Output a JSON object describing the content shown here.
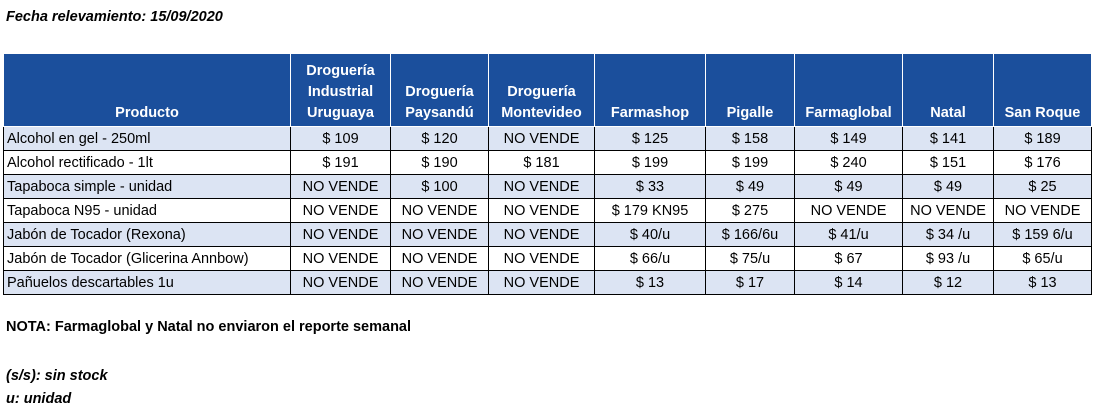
{
  "date_line": "Fecha relevamiento: 15/09/2020",
  "table": {
    "headers": [
      "Producto",
      "Droguería Industrial Uruguaya",
      "Droguería Paysandú",
      "Droguería Montevideo",
      "Farmashop",
      "Pigalle",
      "Farmaglobal",
      "Natal",
      "San Roque"
    ],
    "rows": [
      [
        "Alcohol en gel  - 250ml",
        "$ 109",
        "$ 120",
        "NO VENDE",
        "$ 125",
        "$ 158",
        "$ 149",
        "$ 141",
        "$ 189"
      ],
      [
        "Alcohol rectificado - 1lt",
        "$ 191",
        "$ 190",
        "$ 181",
        "$ 199",
        "$ 199",
        "$ 240",
        "$ 151",
        "$ 176"
      ],
      [
        "Tapaboca simple - unidad",
        "NO VENDE",
        "$ 100",
        "NO VENDE",
        "$ 33",
        "$ 49",
        "$ 49",
        "$ 49",
        "$ 25"
      ],
      [
        "Tapaboca N95 - unidad",
        "NO VENDE",
        "NO VENDE",
        "NO VENDE",
        "$ 179  KN95",
        "$ 275",
        "NO VENDE",
        "NO VENDE",
        "NO VENDE"
      ],
      [
        "Jabón de Tocador (Rexona)",
        "NO VENDE",
        "NO VENDE",
        "NO VENDE",
        "$ 40/u",
        "$ 166/6u",
        "$ 41/u",
        "$ 34 /u",
        "$ 159 6/u"
      ],
      [
        "Jabón de Tocador (Glicerina Annbow)",
        "NO VENDE",
        "NO VENDE",
        "NO VENDE",
        "$ 66/u",
        "$ 75/u",
        "$ 67",
        "$ 93 /u",
        "$ 65/u"
      ],
      [
        "Pañuelos descartables 1u",
        "NO VENDE",
        "NO VENDE",
        "NO VENDE",
        "$ 13",
        "$ 17",
        "$ 14",
        "$ 12",
        "$ 13"
      ]
    ]
  },
  "note": "NOTA: Farmaglobal y Natal no enviaron el reporte semanal",
  "legend": [
    "(s/s): sin stock",
    "u: unidad"
  ],
  "colors": {
    "header_bg": "#1b4f9c",
    "band_bg": "#dce4f3"
  }
}
